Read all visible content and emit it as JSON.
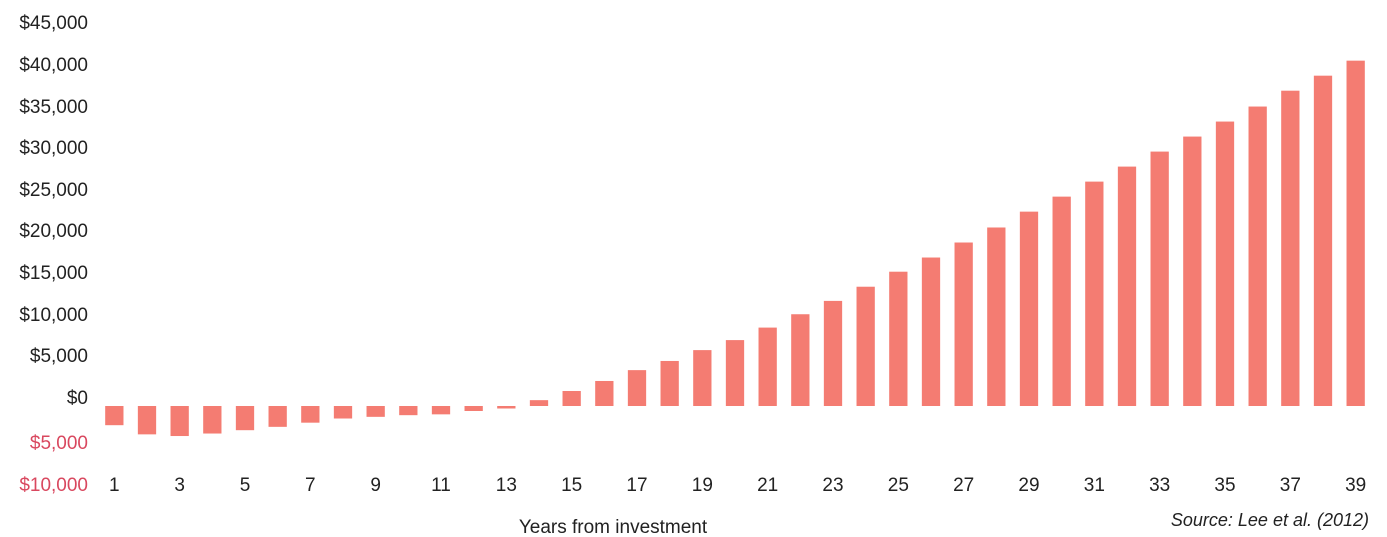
{
  "chart_data": {
    "type": "bar",
    "title": "",
    "xlabel": "Years from investment",
    "ylabel": "",
    "source": "Source: Lee et al. (2012)",
    "categories": [
      1,
      2,
      3,
      4,
      5,
      6,
      7,
      8,
      9,
      10,
      11,
      12,
      13,
      14,
      15,
      16,
      17,
      18,
      19,
      20,
      21,
      22,
      23,
      24,
      25,
      26,
      27,
      28,
      29,
      30,
      31,
      32,
      33,
      34,
      35,
      36,
      37,
      38,
      39
    ],
    "x_tick_labels": [
      "1",
      "3",
      "5",
      "7",
      "9",
      "11",
      "13",
      "15",
      "17",
      "19",
      "21",
      "23",
      "25",
      "27",
      "29",
      "31",
      "33",
      "35",
      "37",
      "39"
    ],
    "series": [
      {
        "values": [
          -2300,
          -3400,
          -3600,
          -3300,
          -2900,
          -2500,
          -2000,
          -1500,
          -1300,
          -1100,
          -1000,
          -600,
          -300,
          700,
          1800,
          3000,
          4300,
          5400,
          6700,
          7900,
          9400,
          11000,
          12600,
          14300,
          16100,
          17800,
          19600,
          21400,
          23300,
          25100,
          26900,
          28700,
          30500,
          32300,
          34100,
          35900,
          37800,
          39600,
          41400
        ],
        "color": "#f47c72"
      }
    ],
    "ylim": [
      -10000,
      45000
    ],
    "y_ticks": [
      -10000,
      -5000,
      0,
      5000,
      10000,
      15000,
      20000,
      25000,
      30000,
      35000,
      40000,
      45000
    ],
    "y_tick_labels": [
      "$10,000",
      "$5,000",
      "$0",
      "$5,000",
      "$10,000",
      "$15,000",
      "$20,000",
      "$25,000",
      "$30,000",
      "$35,000",
      "$40,000",
      "$45,000"
    ],
    "negative_tick_color": "#d9485f",
    "grid": false,
    "legend": "none"
  }
}
